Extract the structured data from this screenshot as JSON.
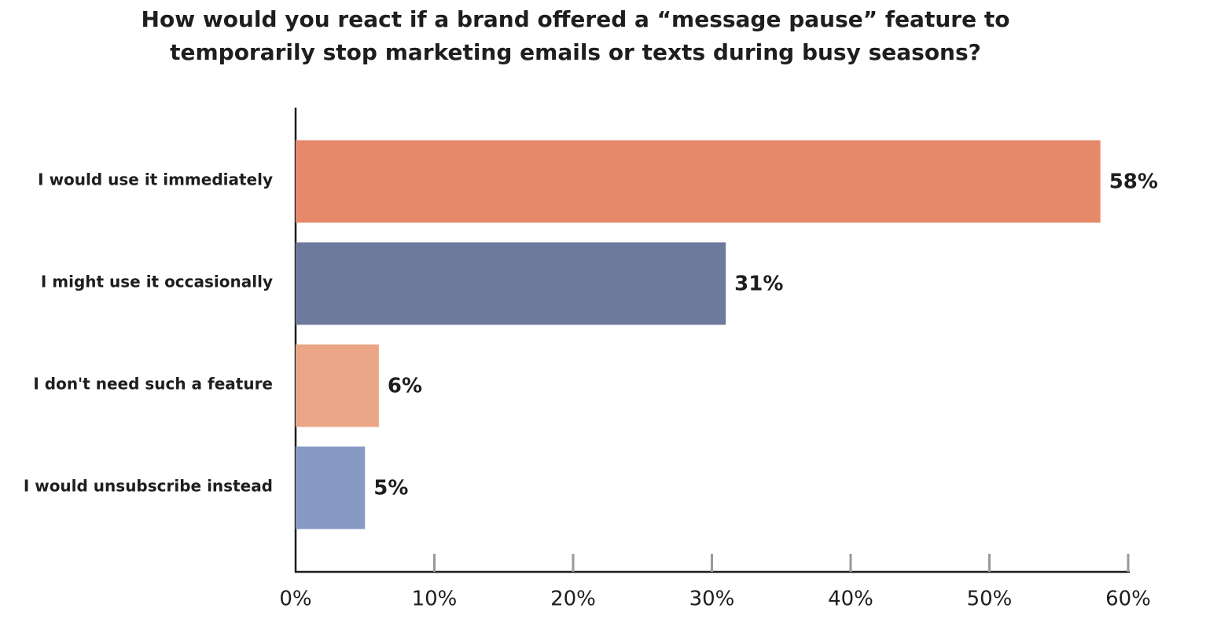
{
  "chart_data": {
    "type": "hbar",
    "title": [
      "How would you react if a brand offered a “message pause” feature to",
      "temporarily stop marketing emails or texts during busy seasons?"
    ],
    "categories": [
      "I would use it immediately",
      "I might use it occasionally",
      "I don't need such a feature",
      "I would unsubscribe instead"
    ],
    "values": [
      58,
      31,
      6,
      5
    ],
    "value_labels": [
      "58%",
      "31%",
      "6%",
      "5%"
    ],
    "colors": [
      "#e6896b",
      "#6e7a9b",
      "#eba587",
      "#879ac4"
    ],
    "xlim": [
      0,
      60
    ],
    "xticks": [
      {
        "value": 0,
        "label": "0%"
      },
      {
        "value": 10,
        "label": "10%"
      },
      {
        "value": 20,
        "label": "20%"
      },
      {
        "value": 30,
        "label": "30%"
      },
      {
        "value": 40,
        "label": "40%"
      },
      {
        "value": 50,
        "label": "50%"
      },
      {
        "value": 60,
        "label": "60%"
      }
    ]
  }
}
